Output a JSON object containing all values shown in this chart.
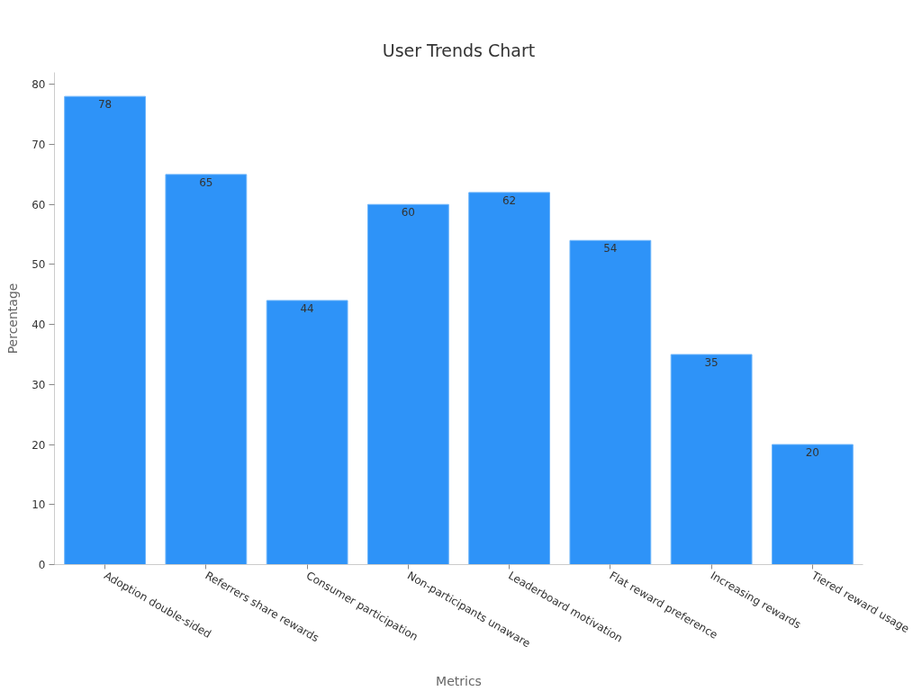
{
  "chart_data": {
    "type": "bar",
    "title": "User Trends Chart",
    "xlabel": "Metrics",
    "ylabel": "Percentage",
    "categories": [
      "Adoption double-sided",
      "Referrers share rewards",
      "Consumer participation",
      "Non-participants unaware",
      "Leaderboard motivation",
      "Flat reward preference",
      "Increasing rewards",
      "Tiered reward usage"
    ],
    "values": [
      78,
      65,
      44,
      60,
      62,
      54,
      35,
      20
    ],
    "color": "#2e93f8",
    "ylim": [
      0,
      82
    ],
    "yticks": [
      0,
      10,
      20,
      30,
      40,
      50,
      60,
      70,
      80
    ],
    "data_labels": true
  }
}
